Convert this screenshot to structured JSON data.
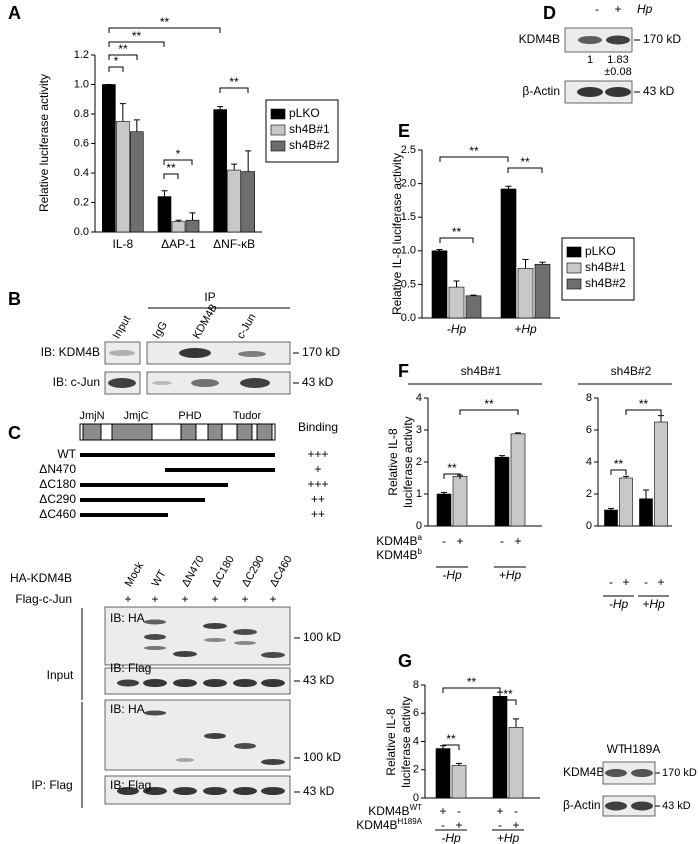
{
  "panel_labels": [
    "A",
    "B",
    "C",
    "D",
    "E",
    "F",
    "G"
  ],
  "chart_data": [
    {
      "type": "bar",
      "y_label": "Relative luciferase activity",
      "ylim": [
        0,
        1.2
      ],
      "yticks": [
        {
          "value": 0,
          "label": "0.0"
        },
        0.2,
        0.4,
        0.6,
        0.8,
        {
          "value": 1,
          "label": "1.0"
        },
        1.2
      ],
      "categories": [
        "IL-8",
        "ΔAP-1",
        "ΔNF-κB"
      ],
      "series": [
        {
          "name": "pLKO",
          "color": "#000000",
          "values": [
            1.0,
            0.24,
            0.83
          ],
          "errors": [
            0,
            0.04,
            0.02
          ]
        },
        {
          "name": "sh4B#1",
          "color": "#c8c8c8",
          "values": [
            0.75,
            0.07,
            0.42
          ],
          "errors": [
            0.12,
            0.01,
            0.04
          ]
        },
        {
          "name": "sh4B#2",
          "color": "#6e6e6e",
          "values": [
            0.68,
            0.08,
            0.41
          ],
          "errors": [
            0.08,
            0.05,
            0.14
          ]
        }
      ],
      "annotations": [
        "*",
        "**",
        "**",
        "**",
        "*",
        "**",
        "**"
      ],
      "legend": "right"
    },
    {
      "type": "bar",
      "y_label": "Relative IL-8 luciferase activity",
      "ylim": [
        0,
        2.5
      ],
      "yticks": [
        {
          "value": 0,
          "label": "0.0"
        },
        0.5,
        {
          "value": 1,
          "label": "1.0"
        },
        1.5,
        {
          "value": 2,
          "label": "2.0"
        },
        2.5
      ],
      "categories": [
        "-Hp",
        "+Hp"
      ],
      "series": [
        {
          "name": "pLKO",
          "color": "#000000",
          "values": [
            1.0,
            1.92
          ],
          "errors": [
            0.02,
            0.04
          ]
        },
        {
          "name": "sh4B#1",
          "color": "#c8c8c8",
          "values": [
            0.46,
            0.74
          ],
          "errors": [
            0.09,
            0.13
          ]
        },
        {
          "name": "sh4B#2",
          "color": "#6e6e6e",
          "values": [
            0.33,
            0.8
          ],
          "errors": [
            0.01,
            0.03
          ]
        }
      ],
      "annotations": [
        "**",
        "**",
        "**"
      ],
      "legend": "right"
    },
    {
      "type": "bar",
      "title": "sh4B#1",
      "y_label": [
        "Relative IL-8",
        "luciferase activity"
      ],
      "ylim": [
        0,
        4
      ],
      "yticks": [
        0,
        1,
        2,
        3,
        4
      ],
      "values": [
        1.0,
        1.55,
        2.15,
        2.88
      ],
      "errors": [
        0.05,
        0.04,
        0.05,
        0.03
      ],
      "colors": [
        "#000000",
        "#c8c8c8",
        "#000000",
        "#c8c8c8"
      ],
      "rows": [
        {
          "label": "KDM4B",
          "sup": "a",
          "signs": [
            "-",
            "+",
            "-",
            "+"
          ]
        },
        {
          "label": "KDM4B",
          "sup": "b"
        }
      ],
      "groups": [
        "-Hp",
        "+Hp"
      ],
      "annotations": [
        "**",
        "**"
      ]
    },
    {
      "type": "bar",
      "title": "sh4B#2",
      "ylim": [
        0,
        8
      ],
      "yticks": [
        0,
        2,
        4,
        6,
        8
      ],
      "values": [
        1.0,
        3.0,
        1.7,
        6.5
      ],
      "errors": [
        0.1,
        0.1,
        0.55,
        0.4
      ],
      "colors": [
        "#000000",
        "#c8c8c8",
        "#000000",
        "#c8c8c8"
      ],
      "rows": [
        {
          "signs": [
            "-",
            "+",
            "-",
            "+"
          ]
        }
      ],
      "groups": [
        "-Hp",
        "+Hp"
      ],
      "annotations": [
        "**",
        "**"
      ]
    },
    {
      "type": "bar",
      "y_label": [
        "Relative IL-8",
        "luciferase activity"
      ],
      "ylim": [
        0,
        8
      ],
      "yticks": [
        0,
        2,
        4,
        6,
        8
      ],
      "values": [
        3.5,
        2.3,
        7.2,
        5.0
      ],
      "errors": [
        0.2,
        0.15,
        0.3,
        0.6
      ],
      "colors": [
        "#000000",
        "#c8c8c8",
        "#000000",
        "#c8c8c8"
      ],
      "rows": [
        {
          "label": "KDM4B",
          "sup": "WT",
          "signs": [
            "+",
            "-",
            "+",
            "-"
          ]
        },
        {
          "label": "KDM4B",
          "sup": "H189A",
          "signs": [
            "-",
            "+",
            "-",
            "+"
          ]
        }
      ],
      "groups": [
        "-Hp",
        "+Hp"
      ],
      "annotations": [
        "**",
        "**",
        "**"
      ]
    }
  ],
  "blot_b": {
    "header": "IP",
    "lanes": [
      "Input",
      "IgG",
      "KDM4B",
      "c-Jun"
    ],
    "rows": [
      "IB: KDM4B",
      "IB: c-Jun"
    ],
    "sizes": [
      "170 kD",
      "43 kD"
    ]
  },
  "blot_c": {
    "domains": [
      "JmjN",
      "JmjC",
      "PHD",
      "Tudor"
    ],
    "binding_header": "Binding",
    "constructs": [
      {
        "name": "WT",
        "binding": "+++"
      },
      {
        "name": "ΔN470",
        "binding": "+"
      },
      {
        "name": "ΔC180",
        "binding": "+++"
      },
      {
        "name": "ΔC290",
        "binding": "++"
      },
      {
        "name": "ΔC460",
        "binding": "++"
      }
    ],
    "row_label": "HA-KDM4B",
    "lanes": [
      "Mock",
      "WT",
      "ΔN470",
      "ΔC180",
      "ΔC290",
      "ΔC460"
    ],
    "flag_label": "Flag-c-Jun",
    "flag_signs": [
      "+",
      "+",
      "+",
      "+",
      "+",
      "+"
    ],
    "groups": [
      {
        "name": "Input",
        "rows": [
          "IB: HA",
          "IB: Flag"
        ],
        "sizes": [
          "100 kD",
          "43 kD"
        ]
      },
      {
        "name": "IP: Flag",
        "rows": [
          "IB: HA",
          "IB: Flag"
        ],
        "sizes": [
          "100 kD",
          "43 kD"
        ]
      }
    ]
  },
  "blot_d": {
    "signs": [
      "-",
      "+"
    ],
    "treatment": "Hp",
    "rows": [
      "KDM4B",
      "β-Actin"
    ],
    "sizes": [
      "170 kD",
      "43 kD"
    ],
    "quant": [
      "1",
      "1.83",
      "±0.08"
    ]
  },
  "blot_g": {
    "lanes": [
      "WT",
      "H189A"
    ],
    "rows": [
      "KDM4B",
      "β-Actin"
    ],
    "sizes": [
      "170 kD",
      "43 kD"
    ]
  }
}
